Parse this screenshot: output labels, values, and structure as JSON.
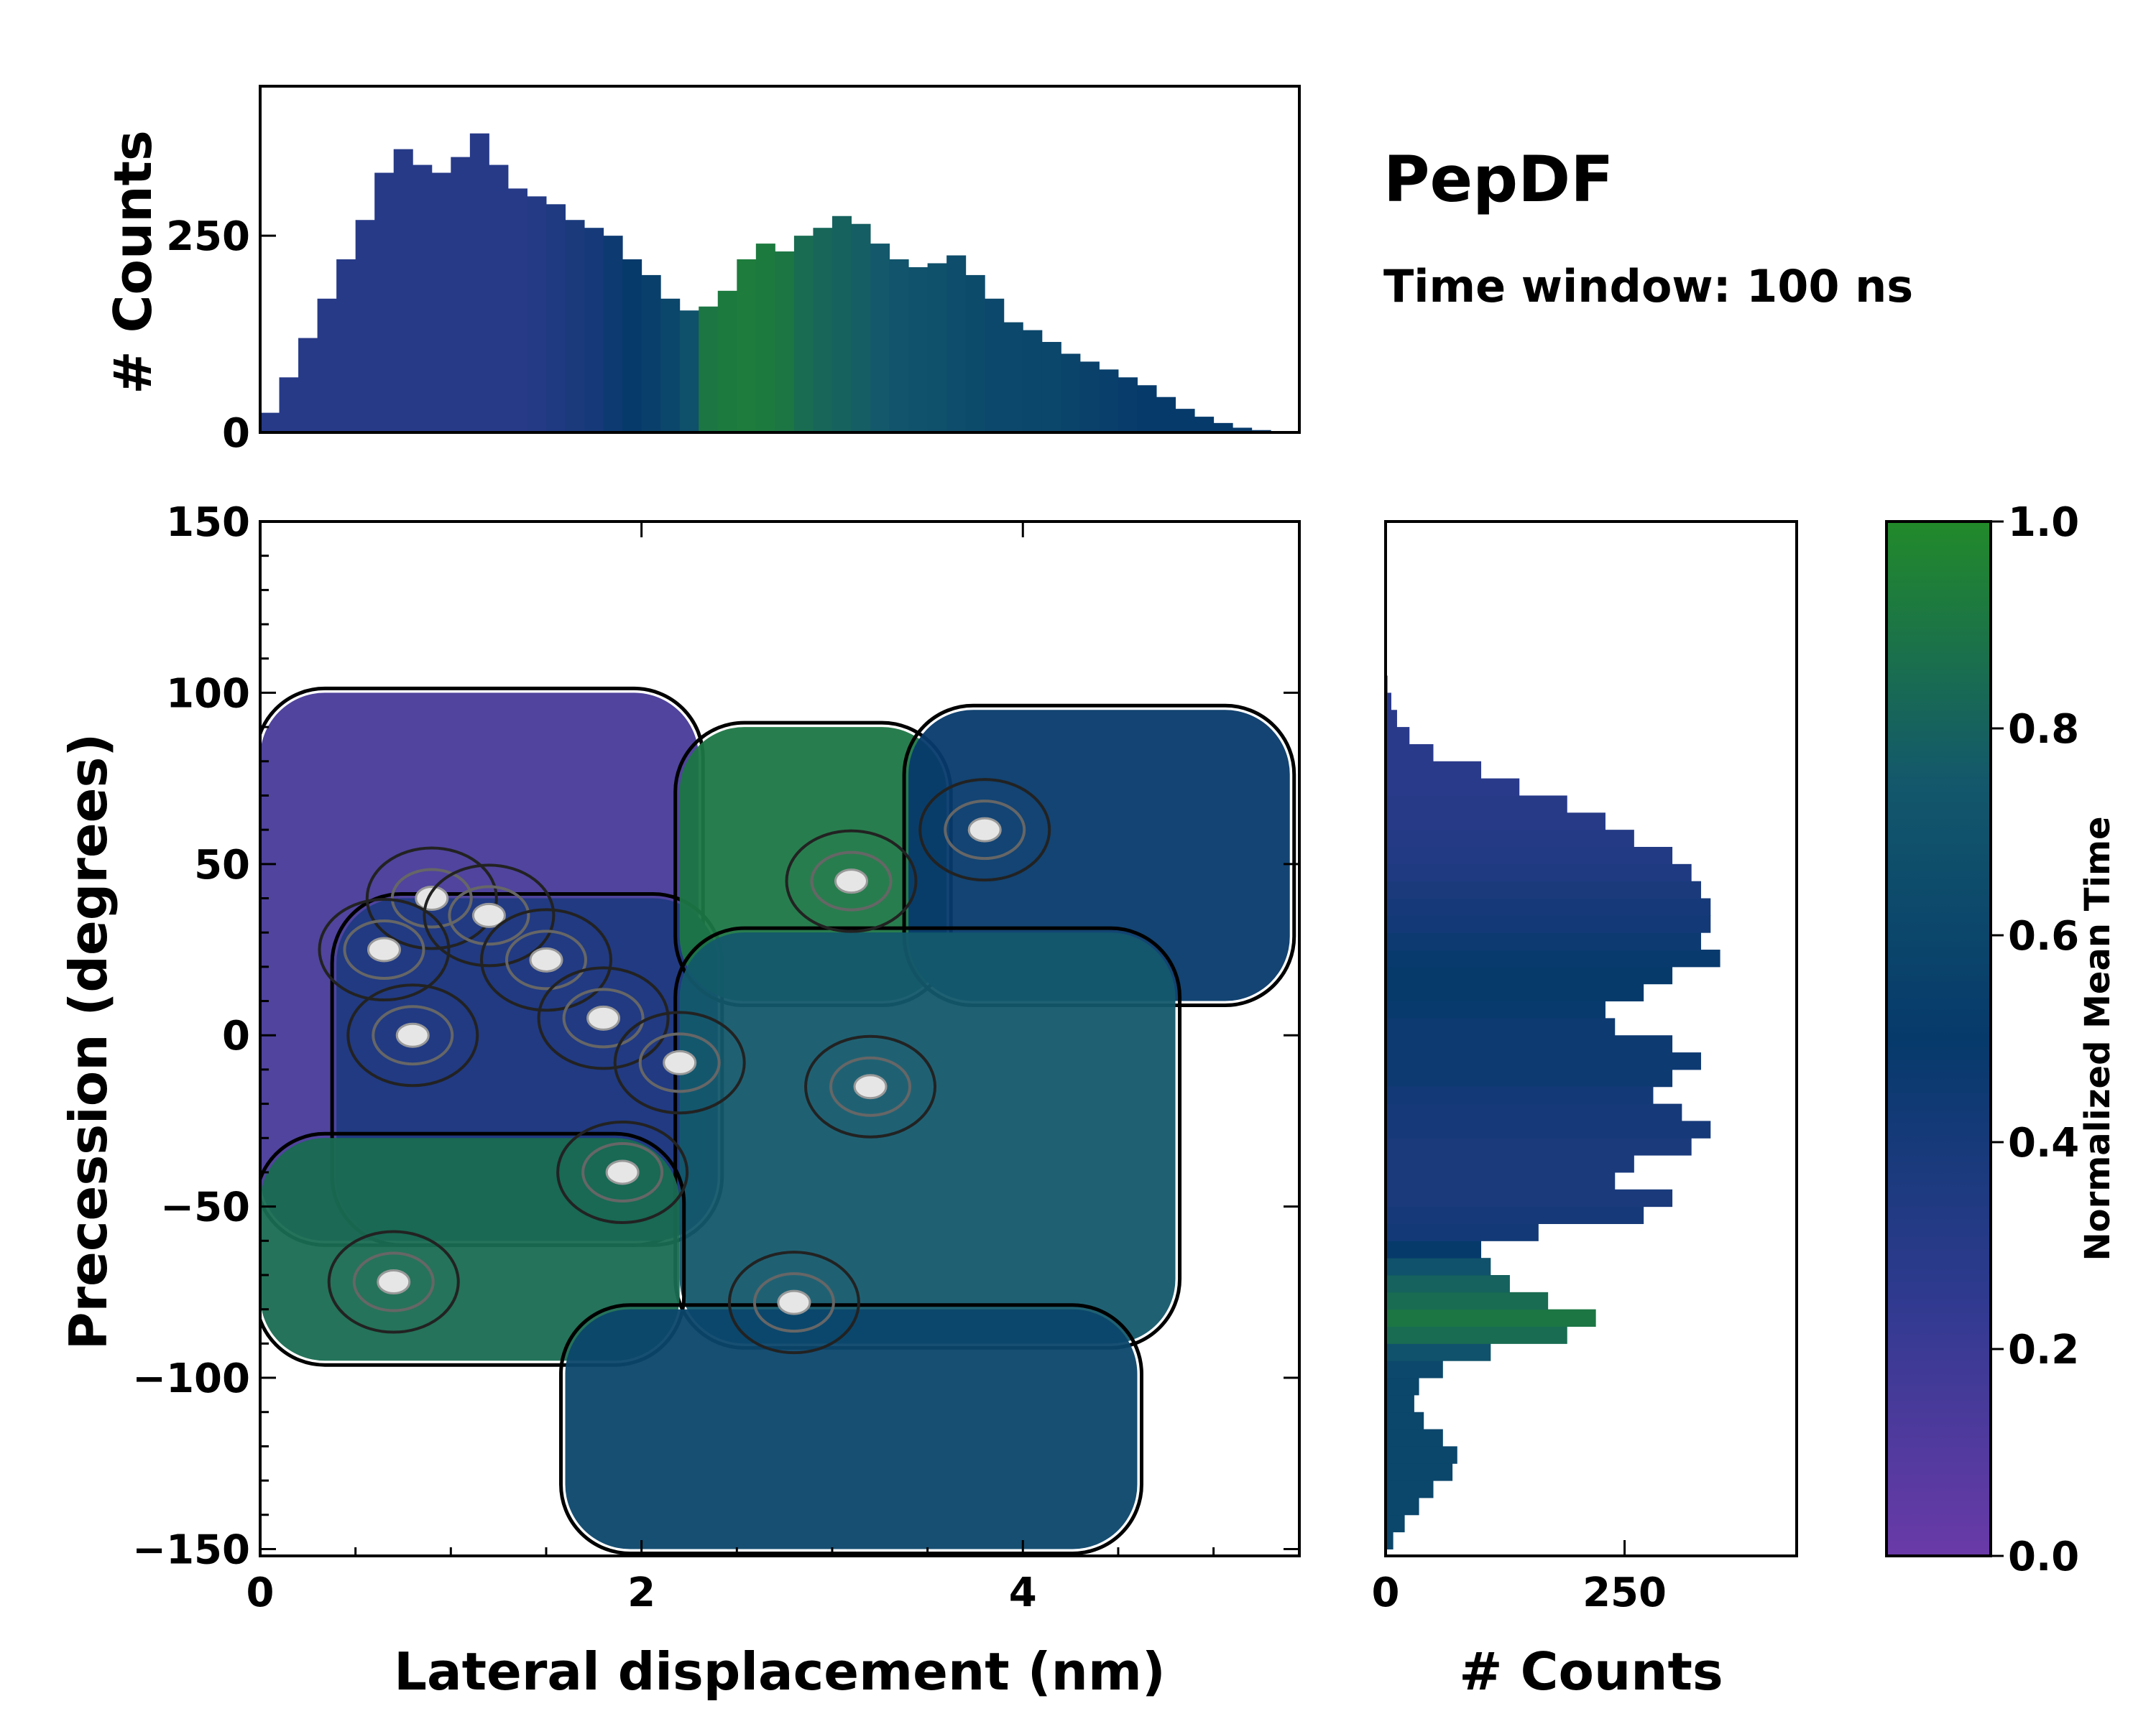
{
  "title": "PepDF",
  "subtitle": "Time window: 100 ns",
  "colors": {
    "purple": "#6a3aa8",
    "blue": "#27377f",
    "navy": "#063a6b",
    "teal": "#13586b",
    "green": "#228a2a"
  },
  "chart_data": [
    {
      "name": "main_2d_histogram",
      "type": "heatmap",
      "xlabel": "Lateral displacement (nm)",
      "ylabel": "Precession (degrees)",
      "xlim": [
        0,
        5.45
      ],
      "ylim": [
        -152,
        150
      ],
      "xticks": [
        0,
        2,
        4
      ],
      "xtick_labels": [
        "0",
        "2",
        "4"
      ],
      "yticks": [
        150,
        100,
        50,
        0,
        -50,
        -100,
        -150
      ],
      "ytick_labels": [
        "150",
        "100",
        "50",
        "0",
        "−50",
        "−100",
        "−150"
      ],
      "regions": [
        {
          "name": "upper-left purple cluster",
          "x_range": [
            0.0,
            2.3
          ],
          "y_range": [
            -60,
            100
          ],
          "mean_time": 0.15
        },
        {
          "name": "center-left blue cluster",
          "x_range": [
            0.4,
            2.4
          ],
          "y_range": [
            -60,
            40
          ],
          "mean_time": 0.35
        },
        {
          "name": "top-middle green cluster",
          "x_range": [
            2.2,
            3.6
          ],
          "y_range": [
            10,
            90
          ],
          "mean_time": 0.9
        },
        {
          "name": "top-right navy cluster",
          "x_range": [
            3.4,
            5.4
          ],
          "y_range": [
            10,
            95
          ],
          "mean_time": 0.5
        },
        {
          "name": "middle green band",
          "x_range": [
            2.2,
            4.8
          ],
          "y_range": [
            -90,
            30
          ],
          "mean_time": 0.75
        },
        {
          "name": "lower-left green cluster",
          "x_range": [
            0.0,
            2.2
          ],
          "y_range": [
            -95,
            -30
          ],
          "mean_time": 0.85
        },
        {
          "name": "bottom teal cluster",
          "x_range": [
            1.6,
            4.6
          ],
          "y_range": [
            -150,
            -80
          ],
          "mean_time": 0.6
        }
      ],
      "density_peaks": [
        {
          "x": 0.9,
          "y": 40
        },
        {
          "x": 1.2,
          "y": 35
        },
        {
          "x": 0.65,
          "y": 25
        },
        {
          "x": 1.5,
          "y": 22
        },
        {
          "x": 0.8,
          "y": 0
        },
        {
          "x": 1.8,
          "y": 5
        },
        {
          "x": 2.2,
          "y": -8
        },
        {
          "x": 1.9,
          "y": -40
        },
        {
          "x": 3.1,
          "y": 45
        },
        {
          "x": 3.8,
          "y": 60
        },
        {
          "x": 2.8,
          "y": -78
        },
        {
          "x": 3.2,
          "y": -15
        },
        {
          "x": 0.7,
          "y": -72
        }
      ]
    },
    {
      "name": "top_marginal_histogram",
      "type": "bar",
      "ylabel": "# Counts",
      "ylim": [
        0,
        440
      ],
      "yticks": [
        0,
        250
      ],
      "ytick_labels": [
        "0",
        "250"
      ],
      "x": [
        0.05,
        0.15,
        0.25,
        0.35,
        0.45,
        0.55,
        0.65,
        0.75,
        0.85,
        0.95,
        1.05,
        1.15,
        1.25,
        1.35,
        1.45,
        1.55,
        1.65,
        1.75,
        1.85,
        1.95,
        2.05,
        2.15,
        2.25,
        2.35,
        2.45,
        2.55,
        2.65,
        2.75,
        2.85,
        2.95,
        3.05,
        3.15,
        3.25,
        3.35,
        3.45,
        3.55,
        3.65,
        3.75,
        3.85,
        3.95,
        4.05,
        4.15,
        4.25,
        4.35,
        4.45,
        4.55,
        4.65,
        4.75,
        4.85,
        4.95,
        5.05,
        5.15,
        5.25,
        5.35
      ],
      "values": [
        25,
        70,
        120,
        170,
        220,
        270,
        330,
        360,
        340,
        330,
        350,
        380,
        340,
        310,
        300,
        290,
        270,
        260,
        250,
        220,
        200,
        170,
        155,
        160,
        180,
        220,
        240,
        230,
        250,
        260,
        275,
        265,
        240,
        220,
        210,
        215,
        225,
        200,
        170,
        140,
        130,
        115,
        100,
        90,
        80,
        70,
        60,
        45,
        30,
        20,
        12,
        6,
        3,
        1
      ],
      "mean_time": [
        0.3,
        0.3,
        0.3,
        0.3,
        0.3,
        0.3,
        0.3,
        0.3,
        0.3,
        0.3,
        0.3,
        0.3,
        0.3,
        0.3,
        0.32,
        0.35,
        0.38,
        0.4,
        0.45,
        0.5,
        0.55,
        0.6,
        0.68,
        0.9,
        0.92,
        0.93,
        0.92,
        0.9,
        0.85,
        0.82,
        0.8,
        0.78,
        0.75,
        0.72,
        0.7,
        0.68,
        0.66,
        0.64,
        0.62,
        0.62,
        0.6,
        0.6,
        0.58,
        0.56,
        0.54,
        0.52,
        0.5,
        0.5,
        0.5,
        0.5,
        0.5,
        0.5,
        0.5,
        0.5
      ]
    },
    {
      "name": "right_marginal_histogram",
      "type": "bar",
      "orientation": "horizontal",
      "xlabel": "# Counts",
      "xlim": [
        0,
        430
      ],
      "xticks": [
        0,
        250
      ],
      "xtick_labels": [
        "0",
        "250"
      ],
      "y": [
        -147.5,
        -142.5,
        -137.5,
        -132.5,
        -127.5,
        -122.5,
        -117.5,
        -112.5,
        -107.5,
        -102.5,
        -97.5,
        -92.5,
        -87.5,
        -82.5,
        -77.5,
        -72.5,
        -67.5,
        -62.5,
        -57.5,
        -52.5,
        -47.5,
        -42.5,
        -37.5,
        -32.5,
        -27.5,
        -22.5,
        -17.5,
        -12.5,
        -7.5,
        -2.5,
        2.5,
        7.5,
        12.5,
        17.5,
        22.5,
        27.5,
        32.5,
        37.5,
        42.5,
        47.5,
        52.5,
        57.5,
        62.5,
        67.5,
        72.5,
        77.5,
        82.5,
        87.5,
        92.5,
        97.5,
        102.5
      ],
      "values": [
        8,
        20,
        35,
        50,
        70,
        75,
        60,
        40,
        30,
        35,
        60,
        110,
        190,
        220,
        170,
        130,
        110,
        100,
        160,
        270,
        300,
        240,
        260,
        320,
        340,
        310,
        280,
        300,
        330,
        300,
        240,
        230,
        270,
        300,
        350,
        330,
        340,
        340,
        330,
        320,
        300,
        260,
        230,
        190,
        140,
        100,
        50,
        25,
        12,
        6,
        2
      ],
      "mean_time": [
        0.6,
        0.6,
        0.6,
        0.6,
        0.6,
        0.6,
        0.6,
        0.6,
        0.6,
        0.6,
        0.62,
        0.7,
        0.85,
        0.9,
        0.85,
        0.8,
        0.7,
        0.5,
        0.42,
        0.4,
        0.38,
        0.38,
        0.38,
        0.38,
        0.4,
        0.4,
        0.42,
        0.45,
        0.45,
        0.45,
        0.45,
        0.48,
        0.5,
        0.5,
        0.48,
        0.45,
        0.42,
        0.4,
        0.38,
        0.35,
        0.33,
        0.32,
        0.3,
        0.3,
        0.28,
        0.28,
        0.28,
        0.28,
        0.28,
        0.28,
        0.28
      ]
    },
    {
      "name": "colorbar",
      "type": "colorbar",
      "label": "Normalized Mean Time",
      "range": [
        0.0,
        1.0
      ],
      "ticks": [
        0.0,
        0.2,
        0.4,
        0.6,
        0.8,
        1.0
      ],
      "tick_labels": [
        "0.0",
        "0.2",
        "0.4",
        "0.6",
        "0.8",
        "1.0"
      ]
    }
  ]
}
